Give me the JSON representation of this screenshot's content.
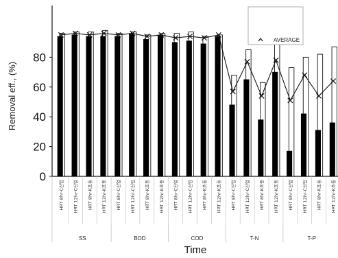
{
  "chart_data": {
    "type": "bar",
    "ylabel": "Removal eff., (%)",
    "xlabel": "Time",
    "ylim": [
      0,
      100
    ],
    "yticks": [
      0,
      20,
      40,
      60,
      80
    ],
    "legend": {
      "label": "AVERAGE",
      "placement": "top-right"
    },
    "categories": [
      "HRT 8hr-C산업",
      "HRT 12hr-C산업",
      "HRT 8hr-K초등",
      "HRT 12hr-K초등",
      "HRT 8hr-C산업",
      "HRT 12hr-C산업",
      "HRT 8hr-K초등",
      "HRT 12hr-K초등",
      "HRT 8hr-C산업",
      "HRT 12hr-C산업",
      "HRT 8hr-K초등",
      "HRT 12hr-K초등",
      "HRT 8hr-C산업",
      "HRT 12hr-C산업",
      "HRT 8hr-K초등",
      "HRT 12hr-K초등",
      "HRT 8hr-C산업",
      "HRT 12hr-C산업",
      "HRT 8hr-K초등",
      "HRT 12hr-K초등"
    ],
    "groups": [
      {
        "label": "SS",
        "count": 4
      },
      {
        "label": "BOD",
        "count": 4
      },
      {
        "label": "COD",
        "count": 4
      },
      {
        "label": "T-N",
        "count": 4
      },
      {
        "label": "T-P",
        "count": 4
      }
    ],
    "series": [
      {
        "style": "open",
        "values": [
          96,
          97,
          97,
          98,
          96,
          97,
          95,
          96,
          96,
          97,
          94,
          95,
          68,
          85,
          63,
          94,
          73,
          80,
          82,
          87
        ]
      },
      {
        "style": "filled",
        "values": [
          94,
          95,
          94,
          94,
          94,
          96,
          92,
          95,
          90,
          91,
          89,
          94,
          48,
          65,
          38,
          70,
          17,
          42,
          31,
          36
        ]
      },
      {
        "style": "average",
        "values": [
          95,
          96,
          95,
          96,
          95,
          96,
          94,
          95,
          93,
          94,
          93,
          95,
          57,
          77,
          54,
          78,
          51,
          68,
          54,
          64
        ]
      }
    ]
  }
}
